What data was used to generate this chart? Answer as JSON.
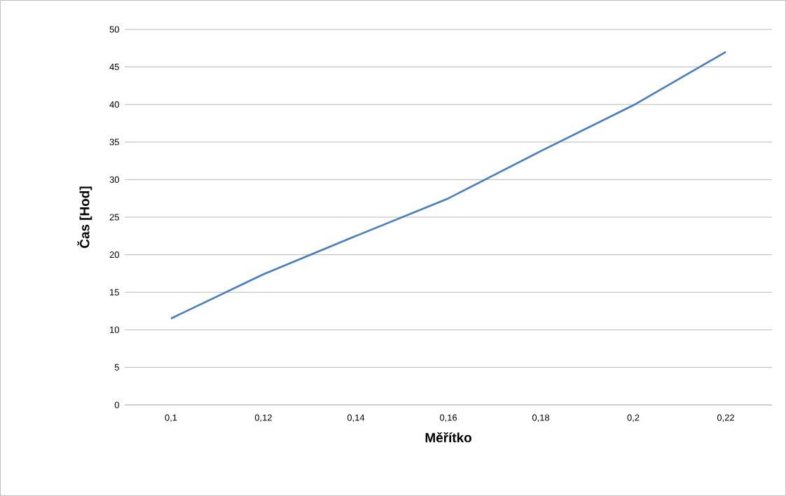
{
  "chart_data": {
    "type": "line",
    "xlabel": "Měřítko",
    "ylabel": "Čas [Hod]",
    "categories": [
      "0,1",
      "0,12",
      "0,14",
      "0,16",
      "0,18",
      "0,2",
      "0,22"
    ],
    "series": [
      {
        "color": "#4a7ebb",
        "values": [
          11.5,
          17.4,
          22.5,
          27.5,
          33.8,
          39.9,
          47.0
        ]
      }
    ],
    "ylim": [
      0,
      50
    ],
    "yticks": [
      0,
      5,
      10,
      15,
      20,
      25,
      30,
      35,
      40,
      45,
      50
    ],
    "grid": "y",
    "marker": "none",
    "line_style": "solid"
  }
}
